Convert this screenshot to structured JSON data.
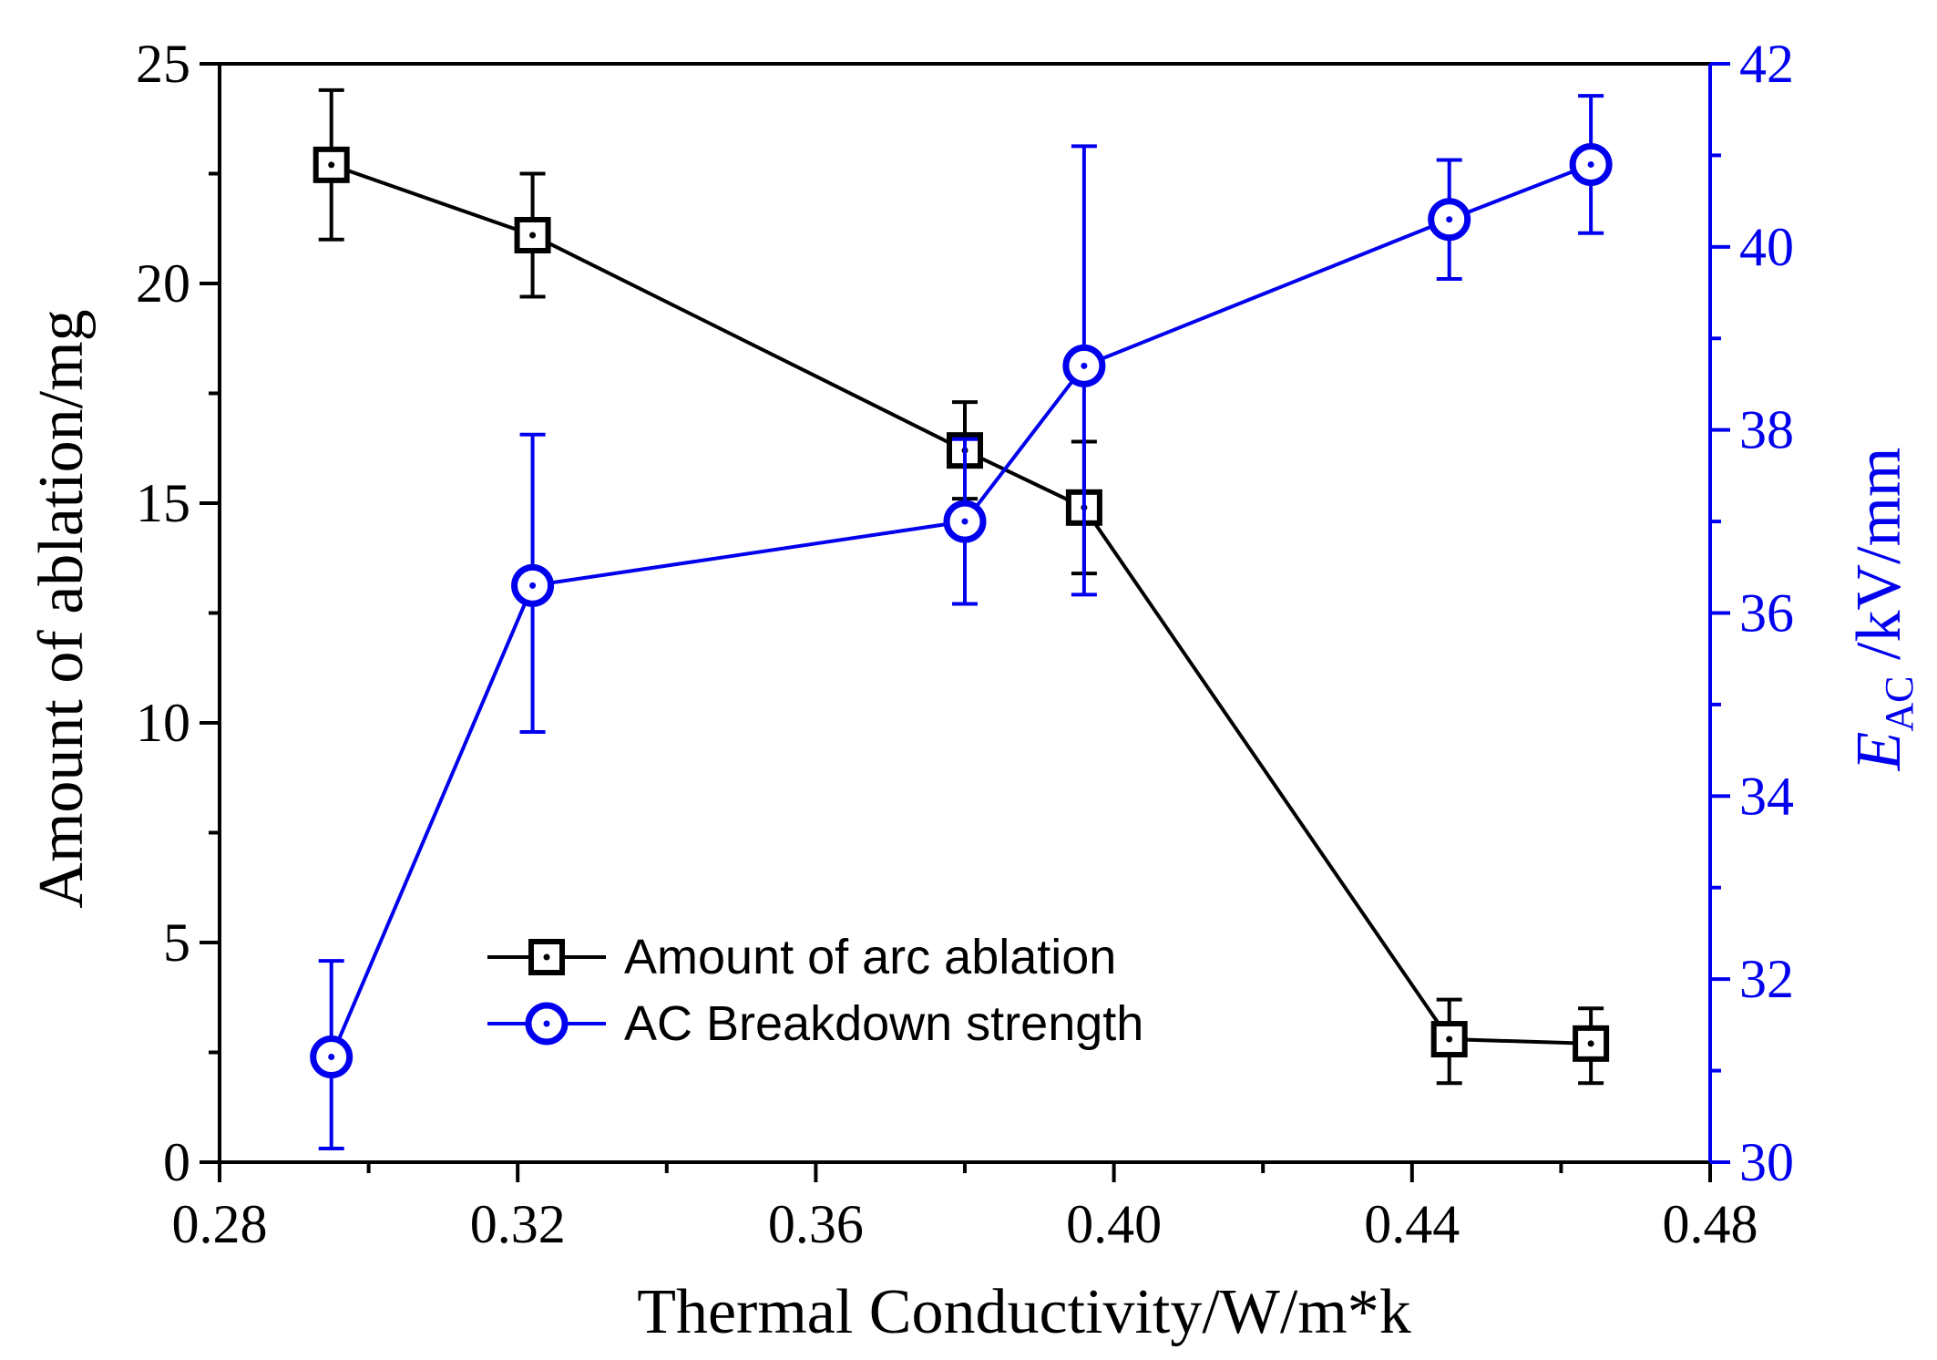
{
  "chart_data": {
    "type": "line",
    "xlabel": "Thermal Conductivity/W/m*k",
    "ylabel_left": "Amount of ablation/mg",
    "ylabel_right": {
      "main": "E",
      "sub": "AC",
      "rest": " /kV/mm"
    },
    "xlim": [
      0.28,
      0.48
    ],
    "x_ticks": [
      "0.28",
      "0.32",
      "0.36",
      "0.40",
      "0.44",
      "0.48"
    ],
    "ylim_left": [
      0,
      25
    ],
    "y_left_ticks": [
      "0",
      "5",
      "10",
      "15",
      "20",
      "25"
    ],
    "ylim_right": [
      30,
      42
    ],
    "y_right_ticks": [
      "30",
      "32",
      "34",
      "36",
      "38",
      "40",
      "42"
    ],
    "legend_position": "center-left",
    "grid": false,
    "series": [
      {
        "name": "Amount of arc ablation",
        "axis": "left",
        "color": "#000000",
        "marker": "square",
        "x": [
          0.295,
          0.322,
          0.38,
          0.396,
          0.445,
          0.464
        ],
        "y": [
          22.7,
          21.1,
          16.2,
          14.9,
          2.8,
          2.7
        ],
        "err_low": [
          21.0,
          19.7,
          15.1,
          13.4,
          1.8,
          1.8
        ],
        "err_high": [
          24.4,
          22.5,
          17.3,
          16.4,
          3.7,
          3.5
        ]
      },
      {
        "name": "AC Breakdown strength",
        "axis": "right",
        "color": "#0000ee",
        "marker": "circle",
        "x": [
          0.295,
          0.322,
          0.38,
          0.396,
          0.445,
          0.464
        ],
        "y": [
          31.15,
          36.3,
          37.0,
          38.7,
          40.3,
          40.9
        ],
        "err_low": [
          30.15,
          34.7,
          36.1,
          36.2,
          39.65,
          40.15
        ],
        "err_high": [
          32.2,
          37.95,
          37.9,
          41.1,
          40.95,
          41.65
        ]
      }
    ]
  }
}
